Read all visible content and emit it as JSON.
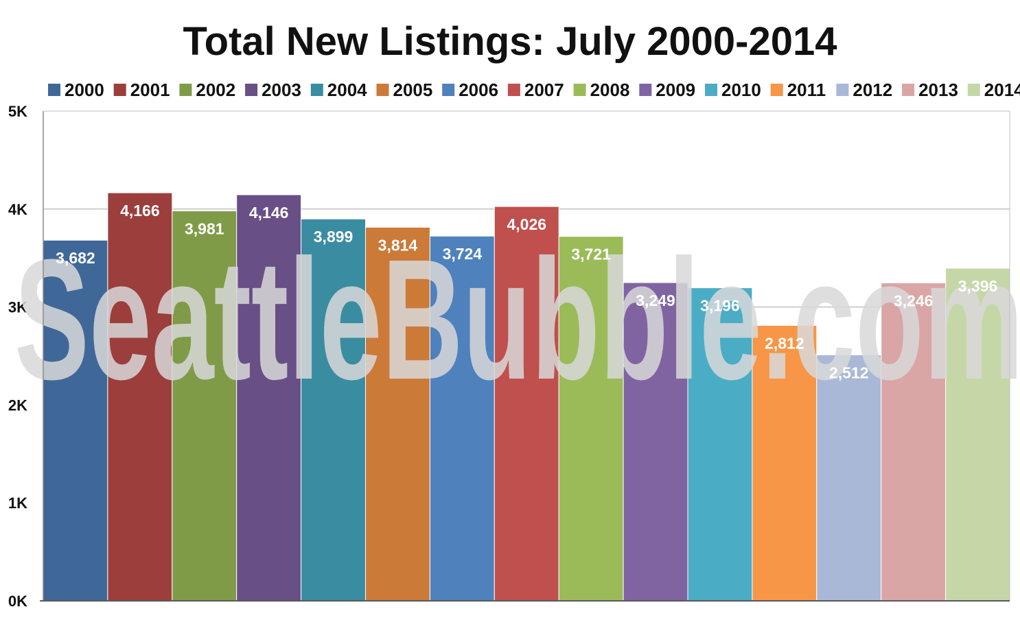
{
  "watermark": "SeattleBubble.com",
  "chart_data": {
    "type": "bar",
    "title": "Total New Listings: July 2000-2014",
    "xlabel": "",
    "ylabel": "",
    "ylim": [
      0,
      5000
    ],
    "yticks": [
      {
        "value": 0,
        "label": "0K"
      },
      {
        "value": 1000,
        "label": "1K"
      },
      {
        "value": 2000,
        "label": "2K"
      },
      {
        "value": 3000,
        "label": "3K"
      },
      {
        "value": 4000,
        "label": "4K"
      },
      {
        "value": 5000,
        "label": "5K"
      }
    ],
    "grid": true,
    "legend_position": "top",
    "series": [
      {
        "name": "2000",
        "value": 3682,
        "label": "3,682",
        "color": "#3f6899"
      },
      {
        "name": "2001",
        "value": 4166,
        "label": "4,166",
        "color": "#9c3e3c"
      },
      {
        "name": "2002",
        "value": 3981,
        "label": "3,981",
        "color": "#809b47"
      },
      {
        "name": "2003",
        "value": 4146,
        "label": "4,146",
        "color": "#684f86"
      },
      {
        "name": "2004",
        "value": 3899,
        "label": "3,899",
        "color": "#3a8ca1"
      },
      {
        "name": "2005",
        "value": 3814,
        "label": "3,814",
        "color": "#cc7a38"
      },
      {
        "name": "2006",
        "value": 3724,
        "label": "3,724",
        "color": "#4f81bd"
      },
      {
        "name": "2007",
        "value": 4026,
        "label": "4,026",
        "color": "#c0504d"
      },
      {
        "name": "2008",
        "value": 3721,
        "label": "3,721",
        "color": "#9bbb59"
      },
      {
        "name": "2009",
        "value": 3249,
        "label": "3,249",
        "color": "#8064a2"
      },
      {
        "name": "2010",
        "value": 3196,
        "label": "3,196",
        "color": "#4bacc6"
      },
      {
        "name": "2011",
        "value": 2812,
        "label": "2,812",
        "color": "#f79646"
      },
      {
        "name": "2012",
        "value": 2512,
        "label": "2,512",
        "color": "#a9b8d7"
      },
      {
        "name": "2013",
        "value": 3246,
        "label": "3,246",
        "color": "#d9a6a5"
      },
      {
        "name": "2014",
        "value": 3396,
        "label": "3,396",
        "color": "#c5d7a6"
      }
    ]
  }
}
